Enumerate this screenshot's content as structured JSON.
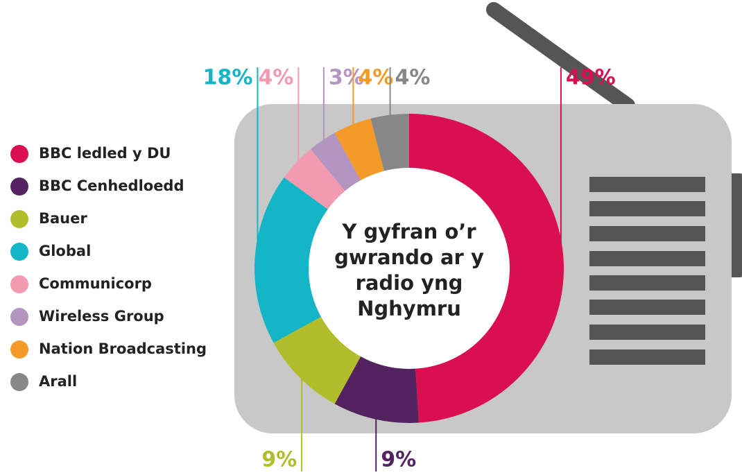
{
  "chart_data": {
    "type": "pie",
    "title": "Y gyfran o’r gwrando ar y radio yng Nghymru",
    "categories": [
      "BBC ledled y DU",
      "BBC Cenhedloedd",
      "Bauer",
      "Global",
      "Communicorp",
      "Wireless Group",
      "Nation Broadcasting",
      "Arall"
    ],
    "values": [
      49,
      9,
      9,
      18,
      4,
      3,
      4,
      4
    ],
    "value_labels": [
      "49%",
      "9%",
      "9%",
      "18%",
      "4%",
      "3%",
      "4%",
      "4%"
    ],
    "colors": [
      "#d90f4f",
      "#52235f",
      "#b1bd2b",
      "#13b5c7",
      "#f29bb0",
      "#b495c0",
      "#f39a28",
      "#878787"
    ]
  }
}
